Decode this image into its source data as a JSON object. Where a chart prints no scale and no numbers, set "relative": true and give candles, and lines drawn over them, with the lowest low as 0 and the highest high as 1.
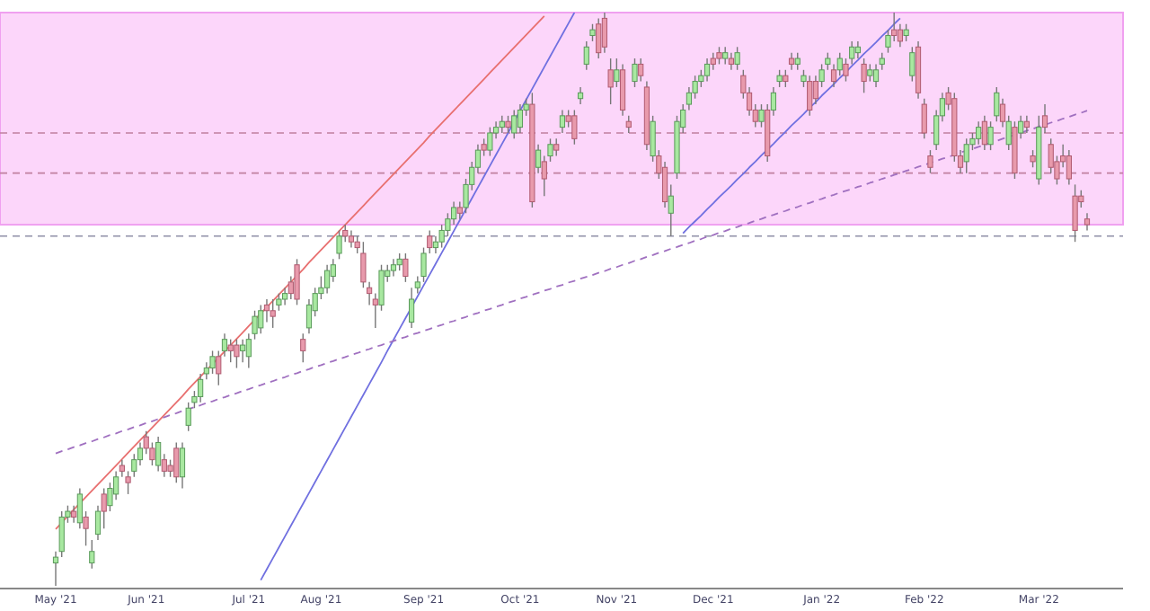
{
  "chart_data": {
    "type": "candlestick",
    "relative": true,
    "categories": [
      "May '21",
      null,
      null,
      null,
      null,
      null,
      null,
      null,
      null,
      null,
      null,
      null,
      null,
      null,
      null,
      "Jun '21",
      null,
      null,
      null,
      null,
      null,
      null,
      null,
      null,
      null,
      null,
      null,
      null,
      null,
      null,
      null,
      null,
      "Jul '21",
      null,
      null,
      null,
      null,
      null,
      null,
      null,
      null,
      null,
      null,
      null,
      "Aug '21",
      null,
      null,
      null,
      null,
      null,
      null,
      null,
      null,
      null,
      null,
      null,
      null,
      null,
      null,
      null,
      null,
      "Sep '21",
      null,
      null,
      null,
      null,
      null,
      null,
      null,
      null,
      null,
      null,
      null,
      null,
      null,
      null,
      null,
      "Oct '21",
      null,
      null,
      null,
      null,
      null,
      null,
      null,
      null,
      null,
      null,
      null,
      null,
      null,
      null,
      null,
      "Nov '21",
      null,
      null,
      null,
      null,
      null,
      null,
      null,
      null,
      null,
      null,
      null,
      null,
      null,
      null,
      null,
      "Dec '21",
      null,
      null,
      null,
      null,
      null,
      null,
      null,
      null,
      null,
      null,
      null,
      null,
      null,
      null,
      null,
      null,
      null,
      "Jan '22",
      null,
      null,
      null,
      null,
      null,
      null,
      null,
      null,
      null,
      null,
      null,
      null,
      null,
      null,
      null,
      null,
      "Feb '22",
      null,
      null,
      null,
      null,
      null,
      null,
      null,
      null,
      null,
      null,
      null,
      null,
      null,
      null,
      null,
      null,
      null,
      null,
      "Mar '22",
      null,
      null,
      null,
      null,
      null,
      null,
      null,
      null
    ],
    "ohlc": [
      [
        0.04,
        0.06,
        0,
        0.05
      ],
      [
        0.06,
        0.13,
        0.05,
        0.12
      ],
      [
        0.12,
        0.14,
        0.11,
        0.13
      ],
      [
        0.13,
        0.14,
        0.11,
        0.12
      ],
      [
        0.11,
        0.17,
        0.1,
        0.16
      ],
      [
        0.12,
        0.13,
        0.07,
        0.1
      ],
      [
        0.04,
        0.08,
        0.03,
        0.06
      ],
      [
        0.09,
        0.14,
        0.08,
        0.13
      ],
      [
        0.16,
        0.17,
        0.1,
        0.13
      ],
      [
        0.14,
        0.18,
        0.13,
        0.17
      ],
      [
        0.16,
        0.2,
        0.15,
        0.19
      ],
      [
        0.21,
        0.22,
        0.19,
        0.2
      ],
      [
        0.19,
        0.2,
        0.16,
        0.18
      ],
      [
        0.2,
        0.23,
        0.19,
        0.22
      ],
      [
        0.22,
        0.25,
        0.21,
        0.24
      ],
      [
        0.26,
        0.27,
        0.23,
        0.24
      ],
      [
        0.24,
        0.25,
        0.21,
        0.22
      ],
      [
        0.21,
        0.26,
        0.2,
        0.25
      ],
      [
        0.22,
        0.23,
        0.19,
        0.2
      ],
      [
        0.21,
        0.22,
        0.19,
        0.2
      ],
      [
        0.24,
        0.25,
        0.18,
        0.19
      ],
      [
        0.19,
        0.25,
        0.17,
        0.24
      ],
      [
        0.28,
        0.32,
        0.27,
        0.31
      ],
      [
        0.32,
        0.34,
        0.31,
        0.33
      ],
      [
        0.33,
        0.37,
        0.32,
        0.36
      ],
      [
        0.37,
        0.39,
        0.36,
        0.38
      ],
      [
        0.38,
        0.41,
        0.37,
        0.4
      ],
      [
        0.4,
        0.41,
        0.35,
        0.37
      ],
      [
        0.41,
        0.44,
        0.4,
        0.43
      ],
      [
        0.42,
        0.43,
        0.39,
        0.41
      ],
      [
        0.42,
        0.43,
        0.38,
        0.4
      ],
      [
        0.41,
        0.43,
        0.39,
        0.42
      ],
      [
        0.4,
        0.44,
        0.38,
        0.43
      ],
      [
        0.44,
        0.48,
        0.43,
        0.47
      ],
      [
        0.45,
        0.49,
        0.44,
        0.48
      ],
      [
        0.49,
        0.5,
        0.46,
        0.48
      ],
      [
        0.48,
        0.5,
        0.45,
        0.47
      ],
      [
        0.49,
        0.51,
        0.48,
        0.5
      ],
      [
        0.5,
        0.52,
        0.49,
        0.51
      ],
      [
        0.53,
        0.54,
        0.5,
        0.51
      ],
      [
        0.56,
        0.57,
        0.49,
        0.5
      ],
      [
        0.43,
        0.44,
        0.39,
        0.41
      ],
      [
        0.45,
        0.5,
        0.44,
        0.49
      ],
      [
        0.48,
        0.52,
        0.47,
        0.51
      ],
      [
        0.51,
        0.54,
        0.5,
        0.52
      ],
      [
        0.52,
        0.56,
        0.51,
        0.55
      ],
      [
        0.54,
        0.57,
        0.53,
        0.56
      ],
      [
        0.58,
        0.62,
        0.57,
        0.61
      ],
      [
        0.62,
        0.63,
        0.6,
        0.61
      ],
      [
        0.61,
        0.62,
        0.59,
        0.6
      ],
      [
        0.6,
        0.61,
        0.58,
        0.59
      ],
      [
        0.58,
        0.6,
        0.52,
        0.53
      ],
      [
        0.52,
        0.53,
        0.49,
        0.51
      ],
      [
        0.5,
        0.51,
        0.45,
        0.49
      ],
      [
        0.49,
        0.56,
        0.48,
        0.55
      ],
      [
        0.54,
        0.56,
        0.53,
        0.55
      ],
      [
        0.55,
        0.57,
        0.54,
        0.56
      ],
      [
        0.56,
        0.58,
        0.55,
        0.57
      ],
      [
        0.57,
        0.58,
        0.53,
        0.54
      ],
      [
        0.46,
        0.52,
        0.45,
        0.5
      ],
      [
        0.52,
        0.54,
        0.51,
        0.53
      ],
      [
        0.54,
        0.59,
        0.53,
        0.58
      ],
      [
        0.61,
        0.62,
        0.58,
        0.59
      ],
      [
        0.59,
        0.61,
        0.58,
        0.6
      ],
      [
        0.6,
        0.63,
        0.59,
        0.62
      ],
      [
        0.62,
        0.65,
        0.61,
        0.64
      ],
      [
        0.64,
        0.67,
        0.63,
        0.66
      ],
      [
        0.66,
        0.67,
        0.64,
        0.65
      ],
      [
        0.66,
        0.71,
        0.65,
        0.7
      ],
      [
        0.7,
        0.74,
        0.69,
        0.73
      ],
      [
        0.73,
        0.77,
        0.72,
        0.76
      ],
      [
        0.77,
        0.78,
        0.75,
        0.76
      ],
      [
        0.76,
        0.8,
        0.75,
        0.79
      ],
      [
        0.79,
        0.81,
        0.78,
        0.8
      ],
      [
        0.8,
        0.82,
        0.79,
        0.81
      ],
      [
        0.81,
        0.82,
        0.79,
        0.8
      ],
      [
        0.79,
        0.83,
        0.78,
        0.82
      ],
      [
        0.8,
        0.84,
        0.79,
        0.83
      ],
      [
        0.83,
        0.85,
        0.82,
        0.84
      ],
      [
        0.84,
        0.86,
        0.66,
        0.67
      ],
      [
        0.73,
        0.77,
        0.72,
        0.76
      ],
      [
        0.74,
        0.75,
        0.68,
        0.71
      ],
      [
        0.75,
        0.78,
        0.74,
        0.77
      ],
      [
        0.77,
        0.78,
        0.75,
        0.76
      ],
      [
        0.8,
        0.83,
        0.79,
        0.82
      ],
      [
        0.82,
        0.83,
        0.8,
        0.81
      ],
      [
        0.82,
        0.83,
        0.77,
        0.78
      ],
      [
        0.85,
        0.87,
        0.84,
        0.86
      ],
      [
        0.91,
        0.95,
        0.9,
        0.94
      ],
      [
        0.96,
        0.98,
        0.95,
        0.97
      ],
      [
        0.98,
        0.99,
        0.92,
        0.93
      ],
      [
        0.99,
        1.0,
        0.93,
        0.94
      ],
      [
        0.9,
        0.92,
        0.84,
        0.87
      ],
      [
        0.88,
        0.92,
        0.87,
        0.9
      ],
      [
        0.9,
        0.91,
        0.82,
        0.83
      ],
      [
        0.81,
        0.82,
        0.79,
        0.8
      ],
      [
        0.88,
        0.92,
        0.87,
        0.91
      ],
      [
        0.91,
        0.92,
        0.88,
        0.89
      ],
      [
        0.87,
        0.88,
        0.76,
        0.77
      ],
      [
        0.75,
        0.82,
        0.74,
        0.81
      ],
      [
        0.75,
        0.76,
        0.71,
        0.72
      ],
      [
        0.73,
        0.74,
        0.66,
        0.67
      ],
      [
        0.65,
        0.7,
        0.61,
        0.68
      ],
      [
        0.72,
        0.82,
        0.71,
        0.81
      ],
      [
        0.8,
        0.84,
        0.79,
        0.83
      ],
      [
        0.84,
        0.87,
        0.83,
        0.86
      ],
      [
        0.86,
        0.89,
        0.85,
        0.88
      ],
      [
        0.88,
        0.9,
        0.87,
        0.89
      ],
      [
        0.89,
        0.92,
        0.88,
        0.91
      ],
      [
        0.92,
        0.93,
        0.9,
        0.91
      ],
      [
        0.93,
        0.94,
        0.91,
        0.92
      ],
      [
        0.92,
        0.94,
        0.91,
        0.93
      ],
      [
        0.92,
        0.93,
        0.9,
        0.91
      ],
      [
        0.91,
        0.94,
        0.9,
        0.93
      ],
      [
        0.89,
        0.9,
        0.85,
        0.86
      ],
      [
        0.86,
        0.87,
        0.82,
        0.83
      ],
      [
        0.83,
        0.84,
        0.8,
        0.81
      ],
      [
        0.81,
        0.84,
        0.8,
        0.83
      ],
      [
        0.83,
        0.84,
        0.74,
        0.75
      ],
      [
        0.83,
        0.87,
        0.82,
        0.86
      ],
      [
        0.88,
        0.9,
        0.87,
        0.89
      ],
      [
        0.89,
        0.9,
        0.87,
        0.88
      ],
      [
        0.92,
        0.93,
        0.9,
        0.91
      ],
      [
        0.91,
        0.93,
        0.9,
        0.92
      ],
      [
        0.88,
        0.9,
        0.87,
        0.89
      ],
      [
        0.88,
        0.89,
        0.82,
        0.83
      ],
      [
        0.88,
        0.89,
        0.84,
        0.85
      ],
      [
        0.88,
        0.91,
        0.87,
        0.9
      ],
      [
        0.91,
        0.93,
        0.9,
        0.92
      ],
      [
        0.9,
        0.91,
        0.87,
        0.88
      ],
      [
        0.9,
        0.93,
        0.89,
        0.92
      ],
      [
        0.91,
        0.92,
        0.88,
        0.89
      ],
      [
        0.92,
        0.95,
        0.91,
        0.94
      ],
      [
        0.93,
        0.95,
        0.92,
        0.94
      ],
      [
        0.91,
        0.92,
        0.86,
        0.88
      ],
      [
        0.89,
        0.91,
        0.88,
        0.9
      ],
      [
        0.88,
        0.91,
        0.87,
        0.9
      ],
      [
        0.91,
        0.93,
        0.9,
        0.92
      ],
      [
        0.94,
        0.97,
        0.93,
        0.96
      ],
      [
        0.97,
        1.0,
        0.95,
        0.96
      ],
      [
        0.97,
        0.98,
        0.94,
        0.95
      ],
      [
        0.96,
        0.98,
        0.95,
        0.97
      ],
      [
        0.89,
        0.94,
        0.88,
        0.93
      ],
      [
        0.94,
        0.95,
        0.85,
        0.86
      ],
      [
        0.84,
        0.85,
        0.78,
        0.79
      ],
      [
        0.75,
        0.76,
        0.72,
        0.73
      ],
      [
        0.77,
        0.83,
        0.76,
        0.82
      ],
      [
        0.82,
        0.86,
        0.81,
        0.85
      ],
      [
        0.86,
        0.87,
        0.83,
        0.84
      ],
      [
        0.85,
        0.86,
        0.74,
        0.75
      ],
      [
        0.75,
        0.76,
        0.72,
        0.73
      ],
      [
        0.74,
        0.78,
        0.72,
        0.77
      ],
      [
        0.77,
        0.79,
        0.76,
        0.78
      ],
      [
        0.78,
        0.81,
        0.77,
        0.8
      ],
      [
        0.81,
        0.82,
        0.76,
        0.77
      ],
      [
        0.77,
        0.81,
        0.76,
        0.8
      ],
      [
        0.82,
        0.87,
        0.81,
        0.86
      ],
      [
        0.84,
        0.85,
        0.8,
        0.81
      ],
      [
        0.77,
        0.82,
        0.76,
        0.81
      ],
      [
        0.8,
        0.81,
        0.71,
        0.72
      ],
      [
        0.79,
        0.82,
        0.78,
        0.81
      ],
      [
        0.81,
        0.82,
        0.79,
        0.8
      ],
      [
        0.75,
        0.76,
        0.73,
        0.74
      ],
      [
        0.71,
        0.82,
        0.7,
        0.8
      ],
      [
        0.82,
        0.84,
        0.79,
        0.8
      ],
      [
        0.77,
        0.78,
        0.72,
        0.73
      ],
      [
        0.74,
        0.75,
        0.7,
        0.71
      ],
      [
        0.75,
        0.77,
        0.73,
        0.74
      ],
      [
        0.75,
        0.76,
        0.7,
        0.71
      ],
      [
        0.68,
        0.7,
        0.6,
        0.62
      ],
      [
        0.68,
        0.69,
        0.66,
        0.67
      ],
      [
        0.64,
        0.65,
        0.62,
        0.63
      ]
    ],
    "series": [
      {
        "type": "line",
        "color": "#e87070",
        "line_style": "solid",
        "values": [
          0.099,
          0.11,
          0.122,
          0.133,
          0.144,
          0.155,
          0.166,
          0.177,
          0.188,
          0.199,
          0.21,
          0.221,
          0.232,
          0.243,
          0.254,
          0.265,
          0.276,
          0.287,
          0.298,
          0.309,
          0.32,
          0.331,
          0.343,
          0.354,
          0.365,
          0.376,
          0.387,
          0.398,
          0.409,
          0.42,
          0.431,
          0.442,
          0.453,
          0.464,
          0.475,
          0.486,
          0.497,
          0.508,
          0.519,
          0.53,
          0.541,
          0.552,
          0.564,
          0.575,
          0.586,
          0.597,
          0.608,
          0.619,
          0.63,
          0.641,
          0.652,
          0.663,
          0.674,
          0.685,
          0.696,
          0.707,
          0.718,
          0.729,
          0.74,
          0.751,
          0.762,
          0.773,
          0.785,
          0.796,
          0.807,
          0.818,
          0.829,
          0.84,
          0.851,
          0.862,
          0.873,
          0.884,
          0.895,
          0.906,
          0.917,
          0.928,
          0.939,
          0.95,
          0.961,
          0.972,
          0.983,
          0.994,
          null,
          null,
          null,
          null,
          null,
          null,
          null,
          null,
          null,
          null,
          null,
          null,
          null,
          null,
          null,
          null,
          null,
          null,
          null,
          null,
          null,
          null,
          null,
          null,
          null,
          null,
          null,
          null,
          null,
          null,
          null,
          null,
          null,
          null,
          null,
          null,
          null,
          null,
          null,
          null,
          null,
          null,
          null,
          null,
          null,
          null,
          null,
          null,
          null,
          null,
          null,
          null,
          null,
          null,
          null,
          null,
          null,
          null,
          null,
          null,
          null,
          null,
          null,
          null,
          null,
          null,
          null,
          null,
          null,
          null,
          null,
          null,
          null,
          null,
          null,
          null,
          null,
          null,
          null,
          null,
          null,
          null,
          null,
          null,
          null,
          null,
          null,
          null,
          null,
          null
        ]
      },
      {
        "type": "line",
        "color": "#7070e0",
        "line_style": "solid",
        "values": [
          null,
          null,
          null,
          null,
          null,
          null,
          null,
          null,
          null,
          null,
          null,
          null,
          null,
          null,
          null,
          null,
          null,
          null,
          null,
          null,
          null,
          null,
          null,
          null,
          null,
          null,
          null,
          null,
          null,
          null,
          null,
          null,
          null,
          null,
          0.01,
          0.029,
          0.048,
          0.067,
          0.086,
          0.105,
          0.124,
          0.143,
          0.162,
          0.181,
          0.2,
          0.219,
          0.238,
          0.257,
          0.276,
          0.295,
          0.314,
          0.333,
          0.352,
          0.371,
          0.39,
          0.41,
          0.429,
          0.448,
          0.467,
          0.486,
          0.505,
          0.524,
          0.543,
          0.562,
          0.581,
          0.6,
          0.619,
          0.638,
          0.657,
          0.676,
          0.695,
          0.714,
          0.733,
          0.752,
          0.771,
          0.79,
          0.81,
          0.829,
          0.848,
          0.867,
          0.886,
          0.905,
          0.924,
          0.943,
          0.962,
          0.981,
          1.0,
          null,
          null,
          null,
          null,
          null,
          null,
          null,
          null,
          null,
          null,
          null,
          null,
          null,
          null,
          null,
          null,
          null,
          null,
          null,
          null,
          null,
          null,
          null,
          null,
          null,
          null,
          null,
          null,
          null,
          null,
          null,
          null,
          null,
          null,
          null,
          null,
          null,
          null,
          null,
          null,
          null,
          null,
          null,
          null,
          null,
          null,
          null,
          null,
          null,
          null,
          null,
          null,
          null,
          null,
          null,
          null,
          null,
          null,
          null,
          null,
          null,
          null,
          null,
          null,
          null,
          null,
          null,
          null,
          null,
          null,
          null,
          null,
          null,
          null,
          null,
          null,
          null,
          null,
          null,
          null,
          null,
          null,
          null,
          null,
          null
        ]
      },
      {
        "type": "line",
        "color": "#7070e0",
        "line_style": "solid",
        "values": [
          null,
          null,
          null,
          null,
          null,
          null,
          null,
          null,
          null,
          null,
          null,
          null,
          null,
          null,
          null,
          null,
          null,
          null,
          null,
          null,
          null,
          null,
          null,
          null,
          null,
          null,
          null,
          null,
          null,
          null,
          null,
          null,
          null,
          null,
          null,
          null,
          null,
          null,
          null,
          null,
          null,
          null,
          null,
          null,
          null,
          null,
          null,
          null,
          null,
          null,
          null,
          null,
          null,
          null,
          null,
          null,
          null,
          null,
          null,
          null,
          null,
          null,
          null,
          null,
          null,
          null,
          null,
          null,
          null,
          null,
          null,
          null,
          null,
          null,
          null,
          null,
          null,
          null,
          null,
          null,
          null,
          null,
          null,
          null,
          null,
          null,
          null,
          null,
          null,
          null,
          null,
          null,
          null,
          null,
          null,
          null,
          null,
          null,
          null,
          null,
          null,
          null,
          null,
          null,
          0.615,
          0.626,
          0.636,
          0.646,
          0.657,
          0.667,
          0.678,
          0.688,
          0.698,
          0.709,
          0.719,
          0.73,
          0.74,
          0.751,
          0.761,
          0.771,
          0.782,
          0.792,
          0.803,
          0.813,
          0.823,
          0.834,
          0.844,
          0.855,
          0.865,
          0.875,
          0.886,
          0.896,
          0.907,
          0.917,
          0.928,
          0.938,
          0.948,
          0.959,
          0.969,
          0.98,
          0.99,
          null,
          null,
          null,
          null,
          null,
          null,
          null,
          null,
          null,
          null,
          null,
          null,
          null,
          null,
          null,
          null,
          null,
          null,
          null,
          null,
          null,
          null,
          null,
          null,
          null,
          null,
          null,
          null,
          null,
          null,
          null
        ]
      },
      {
        "type": "line",
        "color": "#a070c0",
        "line_style": "dashed",
        "values": [
          0.231,
          0.235,
          0.238,
          0.242,
          0.245,
          0.249,
          0.252,
          0.256,
          0.259,
          0.263,
          0.266,
          0.27,
          0.273,
          0.277,
          0.28,
          0.284,
          0.287,
          0.291,
          0.294,
          0.298,
          0.301,
          0.305,
          0.308,
          0.312,
          0.315,
          0.319,
          0.322,
          0.326,
          0.329,
          0.333,
          0.336,
          0.34,
          0.343,
          0.347,
          0.35,
          0.354,
          0.357,
          0.361,
          0.364,
          0.368,
          0.371,
          0.375,
          0.378,
          0.382,
          0.385,
          0.389,
          0.392,
          0.396,
          0.399,
          0.403,
          0.406,
          0.41,
          0.413,
          0.417,
          0.42,
          0.424,
          0.427,
          0.431,
          0.434,
          0.438,
          0.441,
          0.445,
          0.448,
          0.452,
          0.455,
          0.459,
          0.462,
          0.466,
          0.469,
          0.473,
          0.476,
          0.48,
          0.483,
          0.487,
          0.49,
          0.494,
          0.497,
          0.501,
          0.504,
          0.508,
          0.511,
          0.515,
          0.518,
          0.522,
          0.525,
          0.529,
          0.532,
          0.536,
          0.539,
          0.542,
          0.546,
          0.549,
          0.553,
          0.556,
          0.56,
          0.563,
          0.567,
          0.57,
          0.574,
          0.577,
          0.581,
          0.584,
          0.588,
          0.591,
          0.595,
          0.598,
          0.602,
          0.605,
          0.609,
          0.612,
          0.616,
          0.619,
          0.623,
          0.626,
          0.63,
          0.633,
          0.637,
          0.64,
          0.644,
          0.647,
          0.651,
          0.654,
          0.658,
          0.661,
          0.665,
          0.668,
          0.672,
          0.675,
          0.679,
          0.682,
          0.686,
          0.689,
          0.692,
          0.696,
          0.699,
          0.703,
          0.706,
          0.71,
          0.713,
          0.717,
          0.72,
          0.724,
          0.727,
          0.731,
          0.734,
          0.738,
          0.741,
          0.745,
          0.748,
          0.752,
          0.756,
          0.759,
          0.762,
          0.766,
          0.769,
          0.773,
          0.776,
          0.78,
          0.783,
          0.787,
          0.79,
          0.794,
          0.797,
          0.801,
          0.804,
          0.808,
          0.811,
          0.815,
          0.818,
          0.822,
          0.825,
          0.829
        ]
      }
    ],
    "ref_lines": [
      {
        "axis": "y",
        "value": 0.79,
        "color": "#c080a0",
        "line_style": "dashed"
      },
      {
        "axis": "y",
        "value": 0.72,
        "color": "#c080a0",
        "line_style": "dashed"
      },
      {
        "axis": "y",
        "value": 0.61,
        "color": "#9090a8",
        "line_style": "dashed"
      }
    ],
    "bands": [
      {
        "axis": "y",
        "from": 0.63,
        "to": 1,
        "color": "#fcd6fa"
      }
    ]
  }
}
